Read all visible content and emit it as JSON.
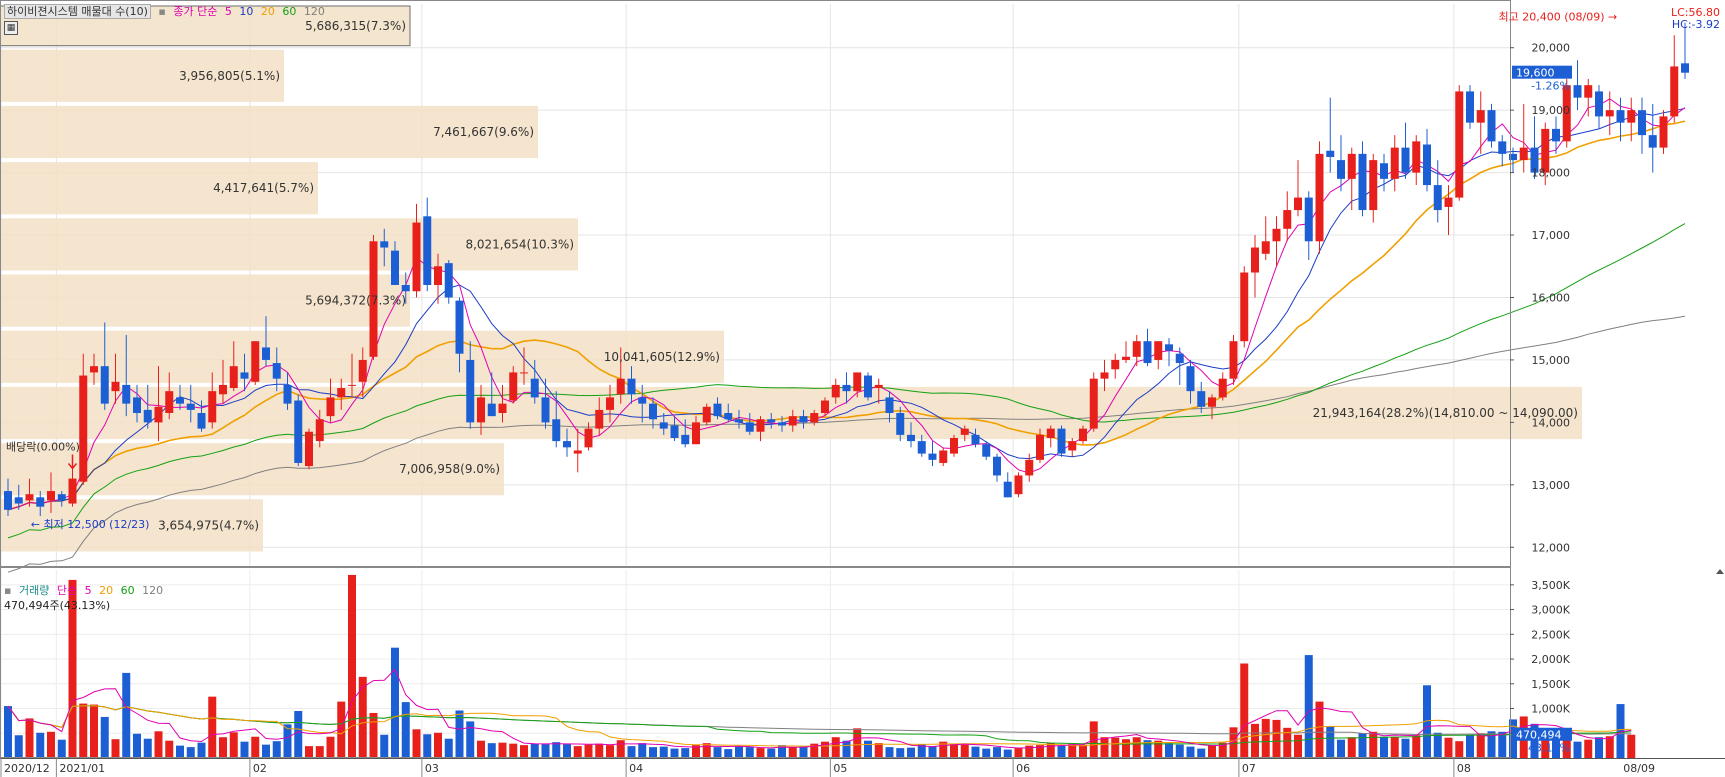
{
  "header": {
    "title": "하이비젼시스템 매물대 수(10)",
    "ma_label": "종가 단순",
    "ma_periods": [
      "5",
      "10",
      "20",
      "60",
      "120"
    ],
    "ma_colors": [
      "#e100b4",
      "#1a3cc8",
      "#f0a000",
      "#14a014",
      "#808080"
    ]
  },
  "price_axis": {
    "ticks": [
      "20,000",
      "19,000",
      "18,000",
      "17,000",
      "16,000",
      "15,000",
      "14,000",
      "13,000",
      "12,000"
    ],
    "lc": "LC:56.80",
    "hc": "HC:-3.92",
    "last_price": "19,600",
    "last_change": "-1.26%"
  },
  "annotations": {
    "high": "최고 20,400 (08/09)",
    "low": "최저 12,500 (12/23)",
    "dividend": "배당락(0.00%)"
  },
  "volume_profile": [
    {
      "label": "5,686,315(7.3%)"
    },
    {
      "label": "3,956,805(5.1%)"
    },
    {
      "label": "7,461,667(9.6%)"
    },
    {
      "label": "4,417,641(5.7%)"
    },
    {
      "label": "8,021,654(10.3%)"
    },
    {
      "label": "5,694,372(7.3%)"
    },
    {
      "label": "10,041,605(12.9%)"
    },
    {
      "label": "21,943,164(28.2%)(14,810.00 ~ 14,090.00)"
    },
    {
      "label": "7,006,958(9.0%)"
    },
    {
      "label": "3,654,975(4.7%)"
    }
  ],
  "volume_panel": {
    "title": "거래량",
    "ma_label": "단순",
    "ma_periods": [
      "5",
      "20",
      "60",
      "120"
    ],
    "last_value_text": "470,494주(43.13%)",
    "ticks": [
      "3,500K",
      "3,000K",
      "2,500K",
      "2,000K",
      "1,500K",
      "1,000K",
      "500K"
    ],
    "last_volume": "470,494",
    "last_volume_pct": "43.13%"
  },
  "x_axis": {
    "labels": [
      "2020/12",
      "2021/01",
      "02",
      "03",
      "04",
      "05",
      "06",
      "07",
      "08"
    ],
    "end_label": "08/09"
  },
  "chart_data": {
    "type": "candlestick",
    "title": "하이비젼시스템",
    "ylim": [
      11700,
      20700
    ],
    "volume_ylim": [
      0,
      3800
    ],
    "months": [
      "2020/12",
      "2021/01",
      "02",
      "03",
      "04",
      "05",
      "06",
      "07",
      "08"
    ],
    "ohlc": [
      [
        12900,
        13100,
        12500,
        12600
      ],
      [
        12800,
        13000,
        12600,
        12700
      ],
      [
        12750,
        13100,
        12650,
        12850
      ],
      [
        12800,
        12900,
        12500,
        12650
      ],
      [
        12750,
        13200,
        12550,
        12900
      ],
      [
        12850,
        12900,
        12650,
        12750
      ],
      [
        12700,
        13300,
        12650,
        13100
      ],
      [
        13050,
        15100,
        13000,
        14750
      ],
      [
        14800,
        15100,
        14600,
        14900
      ],
      [
        14900,
        15600,
        14200,
        14300
      ],
      [
        14500,
        15100,
        14300,
        14650
      ],
      [
        14600,
        15400,
        14100,
        14300
      ],
      [
        14400,
        14600,
        14000,
        14150
      ],
      [
        14200,
        14600,
        13900,
        14000
      ],
      [
        14000,
        14900,
        13700,
        14250
      ],
      [
        14150,
        14800,
        14050,
        14500
      ],
      [
        14400,
        14600,
        14200,
        14300
      ],
      [
        14300,
        14600,
        14000,
        14200
      ],
      [
        14150,
        14350,
        13850,
        13900
      ],
      [
        14000,
        14800,
        13900,
        14500
      ],
      [
        14450,
        15000,
        14300,
        14600
      ],
      [
        14550,
        15300,
        14500,
        14900
      ],
      [
        14800,
        15100,
        14500,
        14700
      ],
      [
        14650,
        15300,
        14600,
        15300
      ],
      [
        15200,
        15700,
        14900,
        15000
      ],
      [
        14950,
        15200,
        14500,
        14700
      ],
      [
        14600,
        14800,
        14200,
        14300
      ],
      [
        14350,
        14450,
        13300,
        13350
      ],
      [
        13300,
        13900,
        13250,
        13850
      ],
      [
        13700,
        14200,
        13600,
        14050
      ],
      [
        14100,
        14700,
        14000,
        14400
      ],
      [
        14400,
        14700,
        14200,
        14550
      ],
      [
        14600,
        15100,
        14400,
        14600
      ],
      [
        14650,
        15200,
        14400,
        15000
      ],
      [
        15050,
        17000,
        15000,
        16900
      ],
      [
        16900,
        17100,
        16500,
        16800
      ],
      [
        16750,
        16900,
        16200,
        16200
      ],
      [
        16200,
        16400,
        15900,
        16100
      ],
      [
        16100,
        17500,
        16000,
        17200
      ],
      [
        17300,
        17600,
        16100,
        16200
      ],
      [
        16200,
        16700,
        15900,
        16500
      ],
      [
        16550,
        16600,
        15900,
        16000
      ],
      [
        15950,
        16000,
        14800,
        15100
      ],
      [
        15000,
        15300,
        13900,
        14000
      ],
      [
        14000,
        14600,
        13800,
        14400
      ],
      [
        14300,
        14800,
        14100,
        14100
      ],
      [
        14150,
        14600,
        14000,
        14300
      ],
      [
        14350,
        14900,
        14300,
        14800
      ],
      [
        14800,
        15200,
        14600,
        14800
      ],
      [
        14700,
        15000,
        14300,
        14400
      ],
      [
        14400,
        14700,
        13900,
        14000
      ],
      [
        14050,
        14500,
        13600,
        13700
      ],
      [
        13700,
        13900,
        13450,
        13600
      ],
      [
        13500,
        13900,
        13200,
        13550
      ],
      [
        13600,
        14000,
        13550,
        13900
      ],
      [
        13900,
        14400,
        13800,
        14200
      ],
      [
        14200,
        14600,
        14000,
        14400
      ],
      [
        14450,
        15200,
        14300,
        14700
      ],
      [
        14700,
        14900,
        14300,
        14450
      ],
      [
        14400,
        14600,
        14000,
        14300
      ],
      [
        14300,
        14400,
        13900,
        14050
      ],
      [
        14000,
        14150,
        13800,
        13900
      ],
      [
        13950,
        14100,
        13700,
        13750
      ],
      [
        13800,
        14050,
        13600,
        13650
      ],
      [
        13650,
        14100,
        13650,
        14000
      ],
      [
        14000,
        14300,
        13950,
        14250
      ],
      [
        14300,
        14400,
        14050,
        14100
      ],
      [
        14150,
        14300,
        14000,
        14050
      ],
      [
        14050,
        14200,
        13900,
        14000
      ],
      [
        14000,
        14150,
        13800,
        13850
      ],
      [
        13850,
        14100,
        13700,
        14050
      ],
      [
        14050,
        14150,
        13900,
        14000
      ],
      [
        14000,
        14100,
        13850,
        13950
      ],
      [
        13950,
        14200,
        13850,
        14100
      ],
      [
        14100,
        14200,
        13900,
        14000
      ],
      [
        14000,
        14200,
        13950,
        14150
      ],
      [
        14150,
        14400,
        14100,
        14350
      ],
      [
        14400,
        14700,
        14300,
        14600
      ],
      [
        14600,
        14800,
        14300,
        14500
      ],
      [
        14500,
        14800,
        14400,
        14800
      ],
      [
        14750,
        14800,
        14350,
        14400
      ],
      [
        14550,
        14700,
        14300,
        14600
      ],
      [
        14400,
        14500,
        14000,
        14150
      ],
      [
        14150,
        14250,
        13700,
        13800
      ],
      [
        13800,
        14000,
        13600,
        13700
      ],
      [
        13700,
        13800,
        13450,
        13500
      ],
      [
        13500,
        13700,
        13300,
        13400
      ],
      [
        13350,
        13600,
        13300,
        13550
      ],
      [
        13500,
        13800,
        13450,
        13750
      ],
      [
        13800,
        13950,
        13700,
        13900
      ],
      [
        13800,
        13900,
        13600,
        13650
      ],
      [
        13650,
        13700,
        13400,
        13450
      ],
      [
        13450,
        13500,
        13050,
        13150
      ],
      [
        13050,
        13200,
        12800,
        12800
      ],
      [
        12850,
        13200,
        12800,
        13150
      ],
      [
        13150,
        13500,
        13050,
        13400
      ],
      [
        13400,
        13900,
        13350,
        13800
      ],
      [
        13750,
        13950,
        13600,
        13900
      ],
      [
        13900,
        13950,
        13450,
        13500
      ],
      [
        13550,
        13750,
        13450,
        13700
      ],
      [
        13700,
        13950,
        13650,
        13900
      ],
      [
        13900,
        14800,
        13850,
        14700
      ],
      [
        14700,
        15000,
        14500,
        14800
      ],
      [
        14850,
        15100,
        14700,
        15000
      ],
      [
        15000,
        15300,
        14950,
        15050
      ],
      [
        15050,
        15400,
        14900,
        15300
      ],
      [
        15300,
        15500,
        14900,
        14950
      ],
      [
        15000,
        15300,
        14850,
        15300
      ],
      [
        15250,
        15350,
        14900,
        15150
      ],
      [
        15100,
        15200,
        14600,
        14950
      ],
      [
        14900,
        15000,
        14300,
        14500
      ],
      [
        14500,
        14650,
        14150,
        14250
      ],
      [
        14250,
        14450,
        14050,
        14400
      ],
      [
        14400,
        14800,
        14350,
        14700
      ],
      [
        14700,
        15400,
        14600,
        15300
      ],
      [
        15300,
        16500,
        15200,
        16400
      ],
      [
        16400,
        17000,
        16000,
        16800
      ],
      [
        16700,
        17300,
        16600,
        16900
      ],
      [
        16900,
        17300,
        16500,
        17100
      ],
      [
        17100,
        17700,
        16900,
        17400
      ],
      [
        17400,
        18200,
        17300,
        17600
      ],
      [
        17600,
        17700,
        16600,
        16900
      ],
      [
        16900,
        18500,
        16700,
        18300
      ],
      [
        18350,
        19200,
        18000,
        18250
      ],
      [
        18200,
        18600,
        17700,
        17900
      ],
      [
        17900,
        18400,
        17400,
        18300
      ],
      [
        18300,
        18500,
        17300,
        17400
      ],
      [
        17400,
        18300,
        17200,
        18200
      ],
      [
        18150,
        18300,
        17700,
        17900
      ],
      [
        17900,
        18600,
        17700,
        18400
      ],
      [
        18400,
        18800,
        17900,
        18000
      ],
      [
        18000,
        18600,
        17800,
        18500
      ],
      [
        18450,
        18700,
        17700,
        17800
      ],
      [
        17800,
        18200,
        17200,
        17400
      ],
      [
        17450,
        17800,
        17000,
        17600
      ],
      [
        17600,
        19400,
        17550,
        19300
      ],
      [
        19300,
        19400,
        18700,
        18800
      ],
      [
        18800,
        19300,
        18300,
        19000
      ],
      [
        19000,
        19100,
        18400,
        18500
      ],
      [
        18500,
        18600,
        18100,
        18300
      ],
      [
        18300,
        18400,
        18000,
        18200
      ],
      [
        18200,
        19100,
        18000,
        18400
      ],
      [
        18400,
        18900,
        17900,
        18000
      ],
      [
        18000,
        18800,
        17800,
        18700
      ],
      [
        18700,
        18900,
        18300,
        18500
      ],
      [
        18500,
        19500,
        18400,
        19400
      ],
      [
        19400,
        19800,
        19000,
        19200
      ],
      [
        19200,
        19500,
        18900,
        19400
      ],
      [
        19300,
        19400,
        18700,
        18900
      ],
      [
        18900,
        19300,
        18600,
        19000
      ],
      [
        19000,
        19200,
        18500,
        18800
      ],
      [
        18800,
        19200,
        18500,
        19000
      ],
      [
        19000,
        19200,
        18300,
        18600
      ],
      [
        18600,
        19100,
        18000,
        18400
      ],
      [
        18400,
        19000,
        18300,
        18900
      ],
      [
        18900,
        20200,
        18800,
        19700
      ],
      [
        19750,
        20400,
        19500,
        19600
      ]
    ],
    "volume": [
      1050,
      460,
      800,
      510,
      530,
      370,
      3600,
      1100,
      1080,
      830,
      380,
      1720,
      490,
      390,
      540,
      350,
      250,
      220,
      310,
      1240,
      420,
      520,
      330,
      430,
      270,
      340,
      680,
      950,
      240,
      240,
      430,
      1140,
      3700,
      1640,
      910,
      470,
      2230,
      1130,
      580,
      480,
      510,
      390,
      960,
      740,
      350,
      300,
      310,
      290,
      260,
      290,
      280,
      320,
      280,
      240,
      270,
      290,
      260,
      360,
      240,
      300,
      220,
      230,
      190,
      200,
      260,
      300,
      220,
      180,
      230,
      220,
      200,
      190,
      260,
      220,
      230,
      290,
      330,
      420,
      350,
      600,
      350,
      300,
      220,
      200,
      210,
      280,
      240,
      330,
      280,
      270,
      230,
      190,
      220,
      170,
      200,
      250,
      260,
      300,
      250,
      280,
      270,
      740,
      420,
      410,
      380,
      420,
      360,
      350,
      300,
      270,
      230,
      190,
      260,
      310,
      620,
      1910,
      690,
      790,
      770,
      610,
      470,
      2080,
      1140,
      640,
      370,
      420,
      500,
      530,
      430,
      430,
      390,
      460,
      1470,
      510,
      410,
      340,
      460,
      500,
      540,
      530,
      780,
      840,
      690,
      520,
      440,
      400,
      330,
      370,
      420,
      440,
      1090,
      470
    ]
  }
}
